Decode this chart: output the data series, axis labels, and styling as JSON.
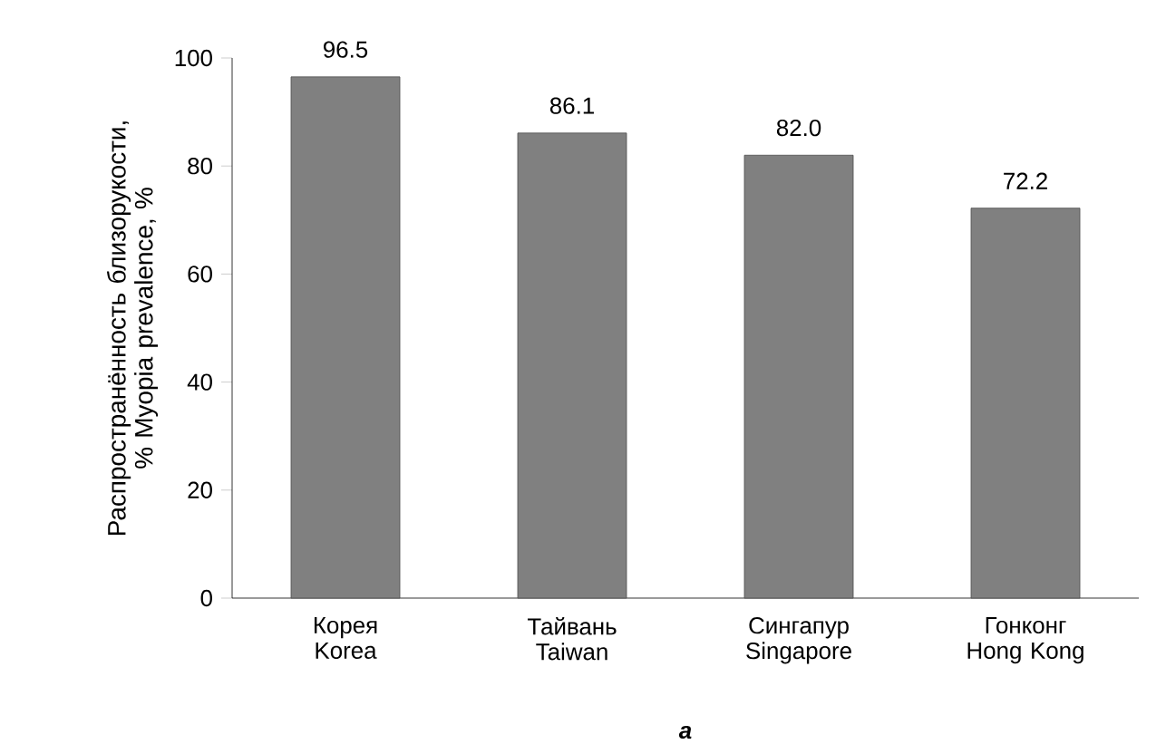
{
  "chart_data": {
    "type": "bar",
    "ylabel": "Распространённость близорукости, % Myopia prevalence, %",
    "categories": [
      "Корея Korea",
      "Тайвань Taiwan",
      "Сингапур Singapore",
      "Гонконг Hong Kong"
    ],
    "values": [
      96.5,
      86.1,
      82.0,
      72.2
    ],
    "color": "#808080",
    "data_labels": true,
    "value_labels": [
      "96.5",
      "86.1",
      "82.0",
      "72.2"
    ],
    "ylim": [
      0,
      100
    ],
    "yticks": [
      0,
      20,
      40,
      60,
      80,
      100
    ],
    "grid": false,
    "annotations": [
      "a"
    ]
  }
}
